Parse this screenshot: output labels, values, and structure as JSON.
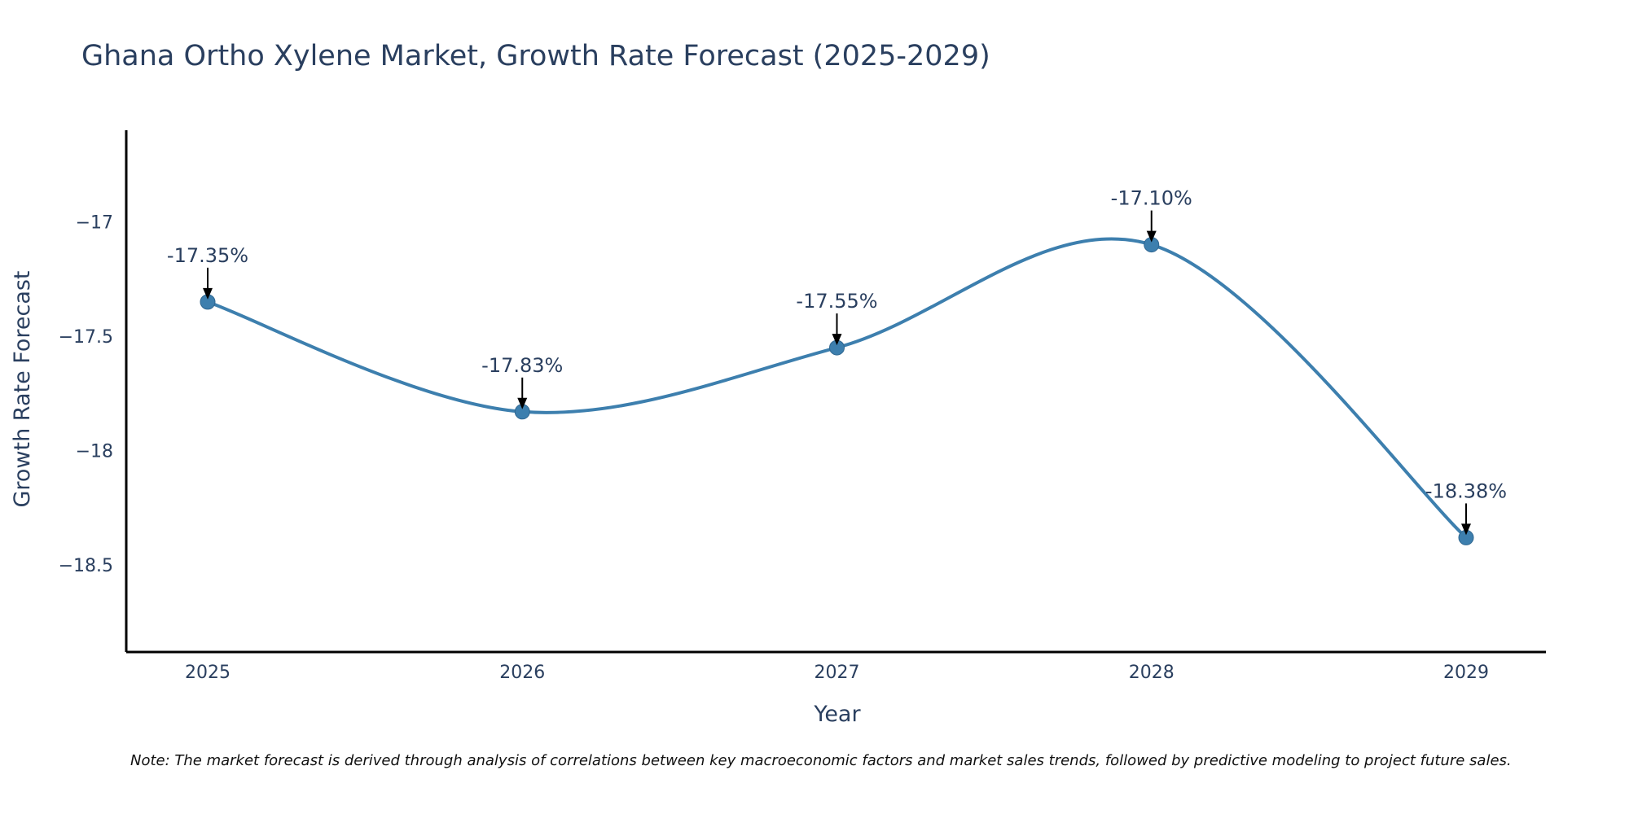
{
  "chart_data": {
    "type": "line",
    "title": "Ghana Ortho Xylene Market, Growth Rate Forecast (2025-2029)",
    "xlabel": "Year",
    "ylabel": "Growth Rate Forecast",
    "categories": [
      "2025",
      "2026",
      "2027",
      "2028",
      "2029"
    ],
    "values": [
      -17.35,
      -17.83,
      -17.55,
      -17.1,
      -18.38
    ],
    "data_labels": [
      "-17.35%",
      "-17.83%",
      "-17.55%",
      "-17.10%",
      "-18.38%"
    ],
    "yticks": [
      -17,
      -17.5,
      -18,
      -18.5
    ],
    "ytick_labels": [
      "−17",
      "−17.5",
      "−18",
      "−18.5"
    ],
    "ylim": [
      -18.88,
      -16.6
    ],
    "grid": false,
    "line_shape": "spline",
    "colors": {
      "line": "#3d7fae",
      "marker": "#3d7fae",
      "axis": "#000000",
      "text": "#2a3f5f",
      "arrow": "#000000"
    },
    "note": "Note: The market forecast is derived through analysis of correlations between key macroeconomic factors and market sales trends, followed by predictive modeling to project future sales."
  }
}
